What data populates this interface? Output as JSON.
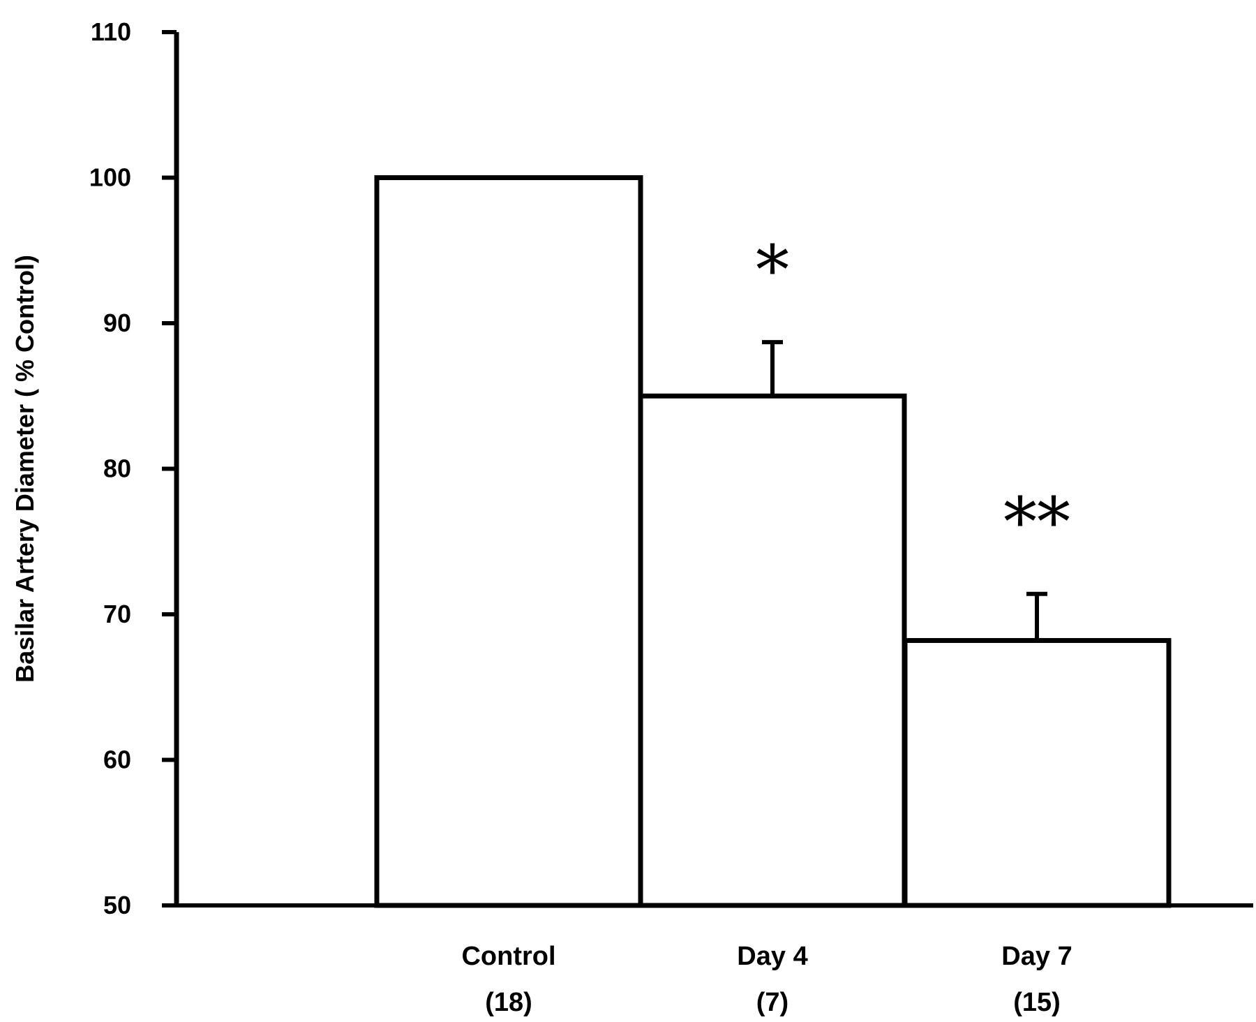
{
  "chart_data": {
    "type": "bar",
    "title": "",
    "xlabel": "",
    "ylabel": "Basilar Artery Diameter ( % Control)",
    "ylim": [
      50,
      110
    ],
    "yticks": [
      "50",
      "60",
      "70",
      "80",
      "90",
      "100",
      "110"
    ],
    "grid": false,
    "legend": "none",
    "bar_fill": "#ffffff",
    "bar_stroke": "#000000",
    "categories": [
      {
        "label": "Control",
        "n": "(18)",
        "value": 100,
        "error": null,
        "significance": ""
      },
      {
        "label": "Day 4",
        "n": "(7)",
        "value": 85,
        "error": 3.7,
        "significance": "*"
      },
      {
        "label": "Day 7",
        "n": "(15)",
        "value": 68.2,
        "error": 3.2,
        "significance": "**"
      }
    ]
  }
}
